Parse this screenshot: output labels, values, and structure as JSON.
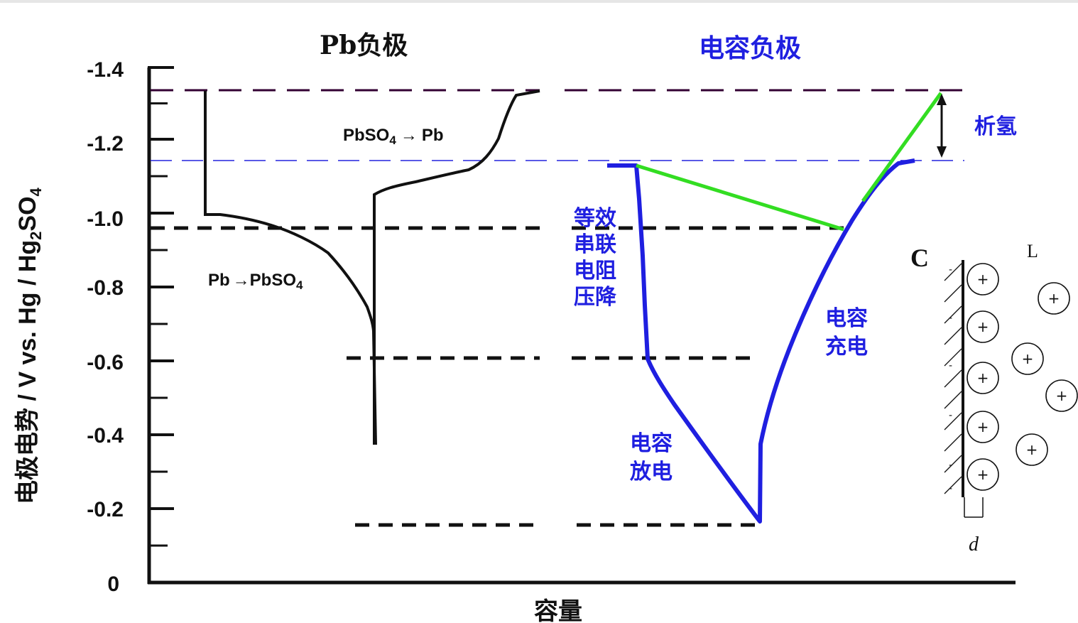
{
  "titles": {
    "left": "Pb负极",
    "right": "电容负极"
  },
  "axes": {
    "ylabel_main": "电极电势 / V vs. Hg / Hg",
    "ylabel_sub1": "2",
    "ylabel_so": "SO",
    "ylabel_sub2": "4",
    "xlabel": "容量",
    "yticks": [
      "0",
      "-0.2",
      "-0.4",
      "-0.6",
      "-0.8",
      "-1.0",
      "-1.2",
      "-1.4"
    ]
  },
  "reactions": {
    "discharge": {
      "left": "Pb",
      "arrow": "→",
      "product": "PbSO",
      "sub": "4"
    },
    "charge": {
      "reactant": "PbSO",
      "sub": "4",
      "arrow": "→",
      "product": "Pb"
    }
  },
  "labels": {
    "hydrogen": "析氢",
    "esr": [
      "等效",
      "串联",
      "电阻",
      "压降"
    ],
    "cap_charge": [
      "电容",
      "充电"
    ],
    "cap_discharge": [
      "电容",
      "放电"
    ]
  },
  "double_layer": {
    "c": "C",
    "l": "L",
    "d": "d",
    "ion": "+",
    "charge": "-"
  },
  "colors": {
    "axis": "#111111",
    "pb_curve": "#111111",
    "cap_curve": "#1f1fe0",
    "ir_line": "#33dd22",
    "upper_dash": "#330033",
    "mid_dash": "#2222dd"
  }
}
